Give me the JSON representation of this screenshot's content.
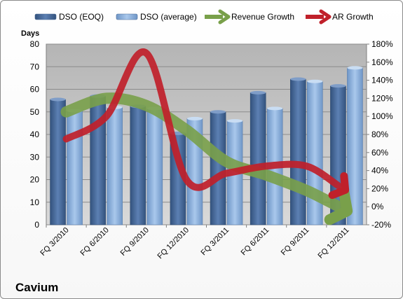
{
  "chart_data": {
    "type": "bar",
    "title": "Cavium",
    "ylabel_left": "Days",
    "ylim_left": [
      0,
      80
    ],
    "left_ticks": [
      0,
      10,
      20,
      30,
      40,
      50,
      60,
      70,
      80
    ],
    "ylim_right": [
      -20,
      180
    ],
    "right_ticks": [
      "-20%",
      "0%",
      "20%",
      "40%",
      "60%",
      "80%",
      "100%",
      "120%",
      "140%",
      "160%",
      "180%"
    ],
    "categories": [
      "FQ 3/2010",
      "FQ 6/2010",
      "FQ 9/2010",
      "FQ 12/2010",
      "FQ 3/2011",
      "FQ 6/2011",
      "FQ 9/2011",
      "FQ 12/2011"
    ],
    "series": [
      {
        "name": "DSO (EOQ)",
        "kind": "bar",
        "axis": "left",
        "values": [
          55.5,
          57,
          52.5,
          40.5,
          50,
          58.5,
          64.5,
          61.5
        ]
      },
      {
        "name": "DSO (average)",
        "kind": "bar",
        "axis": "left",
        "values": [
          50.5,
          52,
          51.5,
          47,
          46,
          51.5,
          63.5,
          69.5
        ]
      },
      {
        "name": "Revenue Growth",
        "kind": "arrow-line",
        "axis": "right",
        "values": [
          105,
          120,
          112,
          85,
          50,
          35,
          18,
          -5
        ]
      },
      {
        "name": "AR Growth",
        "kind": "arrow-line",
        "axis": "right",
        "values": [
          75,
          100,
          170,
          30,
          37,
          45,
          45,
          25
        ]
      }
    ],
    "colors": {
      "dso_eoq": "#4a6fa0",
      "dso_average": "#8db4e2",
      "revenue_growth": "#79a04a",
      "ar_growth": "#c0202a",
      "plot_bg": "#bfbfbf"
    },
    "grid": true,
    "legend_position": "top"
  }
}
